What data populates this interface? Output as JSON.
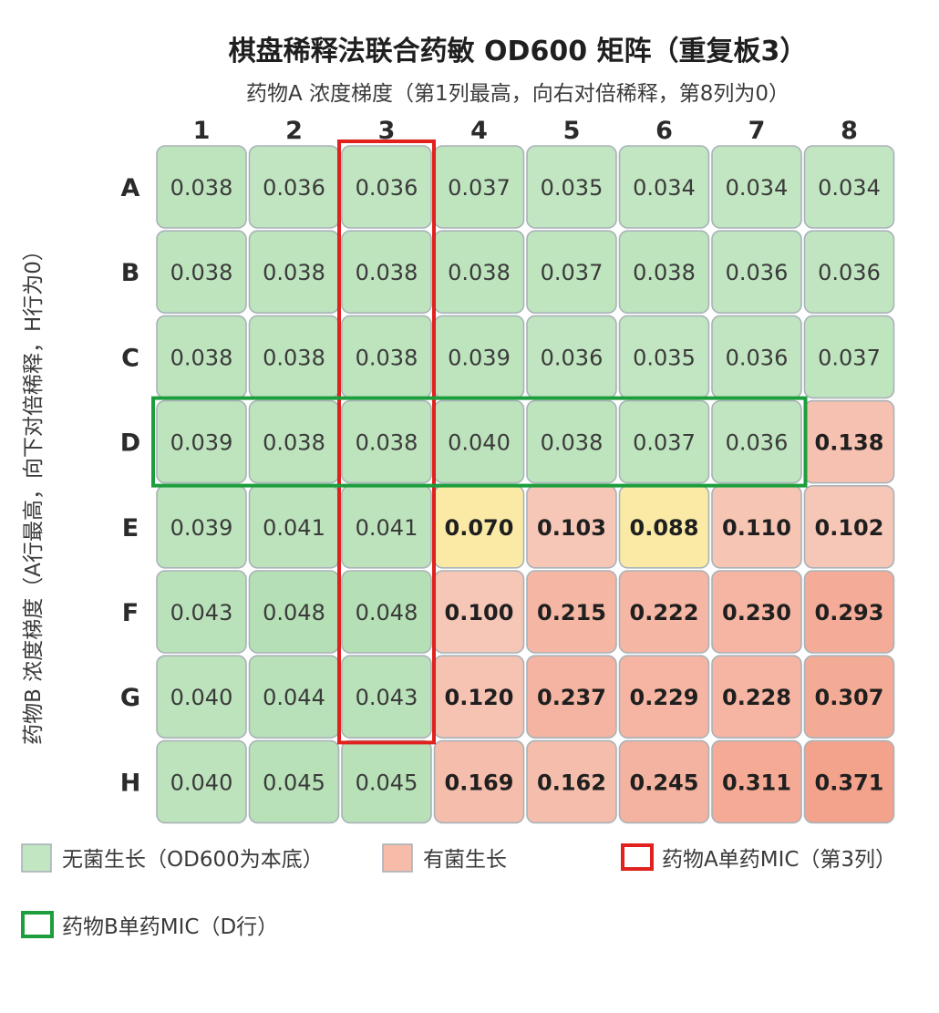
{
  "chart_data": {
    "type": "heatmap",
    "title": "棋盘稀释法联合药敏 OD600 矩阵（重复板3）",
    "xlabel": "药物A 浓度梯度（第1列最高，向右对倍稀释，第8列为0）",
    "ylabel": "药物B 浓度梯度（A行最高，向下对倍稀释，H行为0）",
    "columns": [
      "1",
      "2",
      "3",
      "4",
      "5",
      "6",
      "7",
      "8"
    ],
    "rows": [
      "A",
      "B",
      "C",
      "D",
      "E",
      "F",
      "G",
      "H"
    ],
    "values": [
      [
        "0.038",
        "0.036",
        "0.036",
        "0.037",
        "0.035",
        "0.034",
        "0.034",
        "0.034"
      ],
      [
        "0.038",
        "0.038",
        "0.038",
        "0.038",
        "0.037",
        "0.038",
        "0.036",
        "0.036"
      ],
      [
        "0.038",
        "0.038",
        "0.038",
        "0.039",
        "0.036",
        "0.035",
        "0.036",
        "0.037"
      ],
      [
        "0.039",
        "0.038",
        "0.038",
        "0.040",
        "0.038",
        "0.037",
        "0.036",
        "0.138"
      ],
      [
        "0.039",
        "0.041",
        "0.041",
        "0.070",
        "0.103",
        "0.088",
        "0.110",
        "0.102"
      ],
      [
        "0.043",
        "0.048",
        "0.048",
        "0.100",
        "0.215",
        "0.222",
        "0.230",
        "0.293"
      ],
      [
        "0.040",
        "0.044",
        "0.043",
        "0.120",
        "0.237",
        "0.229",
        "0.228",
        "0.307"
      ],
      [
        "0.040",
        "0.045",
        "0.045",
        "0.169",
        "0.162",
        "0.245",
        "0.311",
        "0.371"
      ]
    ],
    "growth_threshold": 0.06,
    "intermediate_range": [
      0.06,
      0.1
    ],
    "mic_drug_a_column": "3",
    "mic_drug_b_row": "D",
    "colors": {
      "no_growth": "#c2e6c2",
      "no_growth_dark": "#b5dfb5",
      "intermediate": "#faeaa6",
      "growth_light": "#f6c6b6",
      "growth_dark": "#f3a28c",
      "cell_border": "#a9b2b8",
      "mic_a": "#e0211d",
      "mic_b": "#1c9e3c"
    },
    "legend": [
      {
        "label": "无菌生长（OD600为本底）",
        "kind": "swatch",
        "color": "#c2e6c2"
      },
      {
        "label": "有菌生长",
        "kind": "swatch",
        "color": "#f6bba9"
      },
      {
        "label": "药物A单药MIC（第3列）",
        "kind": "outline",
        "color": "#e0211d"
      },
      {
        "label": "药物B单药MIC（D行）",
        "kind": "outline",
        "color": "#1c9e3c"
      }
    ]
  }
}
